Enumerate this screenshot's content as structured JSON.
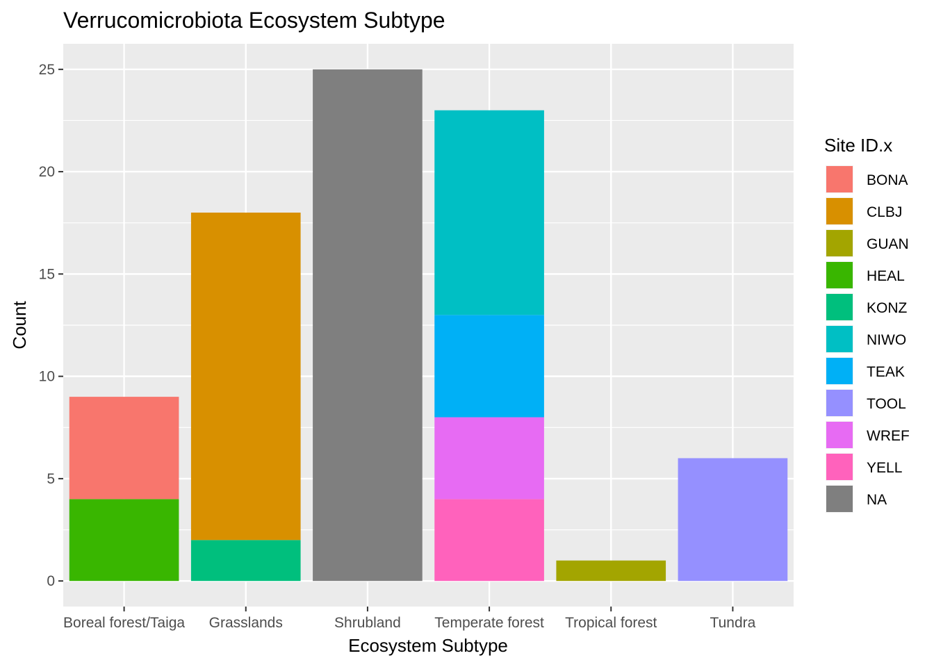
{
  "chart_data": {
    "type": "bar",
    "stacked": true,
    "title": "Verrucomicrobiota Ecosystem Subtype",
    "xlabel": "Ecosystem Subtype",
    "ylabel": "Count",
    "categories": [
      "Boreal forest/Taiga",
      "Grasslands",
      "Shrubland",
      "Temperate forest",
      "Tropical forest",
      "Tundra"
    ],
    "ylim": [
      -1.25,
      26.25
    ],
    "yticks": [
      0,
      5,
      10,
      15,
      20,
      25
    ],
    "grid": true,
    "legend": {
      "title": "Site ID.x",
      "placement": "right",
      "entries": [
        {
          "name": "BONA",
          "color": "#F8766D"
        },
        {
          "name": "CLBJ",
          "color": "#D89000"
        },
        {
          "name": "GUAN",
          "color": "#A3A500"
        },
        {
          "name": "HEAL",
          "color": "#39B600"
        },
        {
          "name": "KONZ",
          "color": "#00BF7D"
        },
        {
          "name": "NIWO",
          "color": "#00BFC4"
        },
        {
          "name": "TEAK",
          "color": "#00B0F6"
        },
        {
          "name": "TOOL",
          "color": "#9590FF"
        },
        {
          "name": "WREF",
          "color": "#E76BF3"
        },
        {
          "name": "YELL",
          "color": "#FF62BC"
        },
        {
          "name": "NA",
          "color": "#7F7F7F"
        }
      ]
    },
    "series": [
      {
        "name": "BONA",
        "values": [
          5,
          0,
          0,
          0,
          0,
          0
        ]
      },
      {
        "name": "CLBJ",
        "values": [
          0,
          16,
          0,
          0,
          0,
          0
        ]
      },
      {
        "name": "GUAN",
        "values": [
          0,
          0,
          0,
          0,
          1,
          0
        ]
      },
      {
        "name": "HEAL",
        "values": [
          4,
          0,
          0,
          0,
          0,
          0
        ]
      },
      {
        "name": "KONZ",
        "values": [
          0,
          2,
          0,
          0,
          0,
          0
        ]
      },
      {
        "name": "NIWO",
        "values": [
          0,
          0,
          0,
          10,
          0,
          0
        ]
      },
      {
        "name": "TEAK",
        "values": [
          0,
          0,
          0,
          5,
          0,
          0
        ]
      },
      {
        "name": "TOOL",
        "values": [
          0,
          0,
          0,
          0,
          0,
          6
        ]
      },
      {
        "name": "WREF",
        "values": [
          0,
          0,
          0,
          4,
          0,
          0
        ]
      },
      {
        "name": "YELL",
        "values": [
          0,
          0,
          0,
          4,
          0,
          0
        ]
      },
      {
        "name": "NA",
        "values": [
          0,
          0,
          25,
          0,
          0,
          0
        ]
      }
    ]
  }
}
